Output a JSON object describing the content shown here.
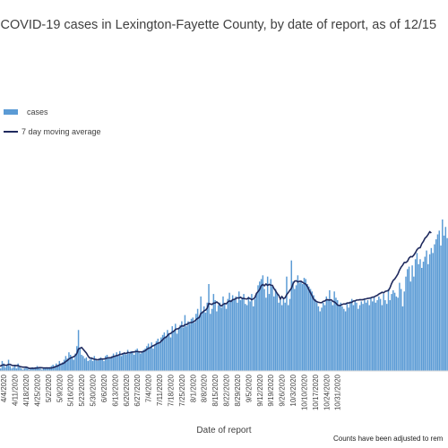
{
  "chart_data": {
    "type": "bar",
    "title": "w COVID-19 cases in Lexington-Fayette County, by date of report, as of 12/15",
    "xlabel": "Date of report",
    "ylabel": "",
    "series": [
      {
        "name": "cases",
        "type": "bar",
        "color": "#5b9bd5"
      },
      {
        "name": "7 day moving average",
        "type": "line",
        "color": "#1f2a5e"
      }
    ],
    "x_tick_labels": [
      "4/4/2020",
      "4/11/2020",
      "4/18/2020",
      "4/25/2020",
      "5/2/2020",
      "5/9/2020",
      "5/16/2020",
      "5/23/2020",
      "5/30/2020",
      "6/6/2020",
      "6/13/2020",
      "6/20/2020",
      "6/27/2020",
      "7/4/2020",
      "7/11/2020",
      "7/18/2020",
      "7/25/2020",
      "8/1/2020",
      "8/8/2020",
      "8/15/2020",
      "8/22/2020",
      "8/29/2020",
      "9/5/2020",
      "9/12/2020",
      "9/19/2020",
      "9/26/2020",
      "10/3/2020",
      "10/10/2020",
      "10/17/2020",
      "10/24/2020",
      "10/31/2020"
    ],
    "values": [
      4,
      2,
      8,
      6,
      3,
      5,
      9,
      4,
      2,
      3,
      5,
      2,
      6,
      3,
      2,
      1,
      2,
      3,
      2,
      1,
      2,
      3,
      2,
      3,
      4,
      3,
      2,
      1,
      2,
      2,
      3,
      2,
      3,
      4,
      5,
      4,
      6,
      5,
      8,
      6,
      7,
      9,
      12,
      10,
      15,
      13,
      11,
      9,
      14,
      20,
      33,
      18,
      13,
      12,
      10,
      11,
      8,
      9,
      10,
      8,
      12,
      9,
      8,
      10,
      11,
      9,
      8,
      12,
      13,
      10,
      11,
      12,
      14,
      12,
      15,
      13,
      16,
      12,
      14,
      15,
      13,
      17,
      14,
      16,
      15,
      13,
      17,
      18,
      15,
      14,
      16,
      17,
      18,
      20,
      22,
      19,
      23,
      18,
      21,
      24,
      26,
      22,
      27,
      29,
      31,
      28,
      33,
      30,
      27,
      36,
      32,
      38,
      30,
      34,
      37,
      40,
      35,
      45,
      36,
      40,
      38,
      42,
      43,
      39,
      46,
      50,
      44,
      60,
      48,
      52,
      47,
      55,
      70,
      46,
      50,
      62,
      57,
      48,
      53,
      55,
      51,
      60,
      54,
      50,
      58,
      63,
      57,
      61,
      57,
      60,
      55,
      64,
      57,
      59,
      62,
      54,
      53,
      60,
      56,
      62,
      52,
      58,
      63,
      69,
      72,
      74,
      77,
      66,
      59,
      76,
      62,
      74,
      68,
      60,
      66,
      63,
      55,
      58,
      53,
      58,
      55,
      76,
      53,
      58,
      89,
      72,
      66,
      69,
      77,
      71,
      72,
      70,
      75,
      74,
      70,
      68,
      66,
      64,
      61,
      58,
      55,
      52,
      48,
      51,
      55,
      53,
      60,
      57,
      65,
      56,
      53,
      64,
      59,
      57,
      53,
      55,
      52,
      50,
      48,
      54,
      51,
      56,
      58,
      53,
      57,
      55,
      50,
      53,
      56,
      54,
      58,
      55,
      57,
      53,
      59,
      56,
      60,
      55,
      57,
      60,
      58,
      53,
      62,
      57,
      54,
      66,
      57,
      62,
      65,
      63,
      60,
      59,
      71,
      66,
      52,
      64,
      76,
      82,
      84,
      72,
      85,
      76,
      90,
      95,
      86,
      90,
      83,
      88,
      92,
      97,
      86,
      94,
      99,
      95,
      102,
      106,
      110,
      113,
      101,
      122,
      109,
      116,
      107
    ],
    "moving_average": [
      4,
      4,
      4.7,
      5,
      4.6,
      4.7,
      5.3,
      5.3,
      4.6,
      4.3,
      4.4,
      4.3,
      4.4,
      3.6,
      3.3,
      3.1,
      3,
      3.1,
      2.7,
      2,
      2.1,
      2.1,
      2.1,
      2.3,
      2.4,
      2.6,
      2.7,
      2.6,
      2.4,
      2.4,
      2.4,
      2.4,
      2.4,
      2.4,
      2.7,
      3.1,
      3.7,
      4,
      4.9,
      5.4,
      5.9,
      6.4,
      7.6,
      8.4,
      9.6,
      10.4,
      11,
      11.4,
      12.4,
      14.1,
      17.7,
      18.3,
      18.9,
      17.4,
      15.9,
      14.4,
      12.1,
      10.4,
      10.4,
      9.9,
      9.4,
      9.3,
      8.9,
      9.3,
      9.6,
      9.6,
      9.6,
      9.9,
      10.4,
      10.6,
      10.6,
      10.9,
      11.6,
      11.9,
      12.4,
      12.6,
      13.4,
      13.4,
      14,
      14.4,
      14,
      14.9,
      14.7,
      14.7,
      15.3,
      15.3,
      15.6,
      15.7,
      15.4,
      15.4,
      15.3,
      15.7,
      16.3,
      17.3,
      18.3,
      18.6,
      19.6,
      20.3,
      20.9,
      21.7,
      22.4,
      22.6,
      23.9,
      25.1,
      26.6,
      27.1,
      28.4,
      29.9,
      30.1,
      31.4,
      32,
      33.4,
      33.9,
      34.1,
      35.3,
      36.4,
      36.1,
      37.3,
      37.3,
      38.3,
      38.9,
      39,
      39.4,
      40.1,
      41.3,
      42.4,
      43.1,
      46.4,
      47,
      48.4,
      49,
      50.6,
      54.4,
      53.9,
      53.6,
      54.6,
      54.7,
      55.6,
      54.6,
      53,
      52.3,
      53.6,
      54.3,
      54.1,
      55.6,
      56.4,
      56,
      57.4,
      57.6,
      58.3,
      58.9,
      58.7,
      59.4,
      58.4,
      58.4,
      58.1,
      58,
      58.7,
      58.3,
      57.4,
      58,
      59.1,
      62.4,
      63.9,
      65.6,
      68.6,
      69.6,
      68.6,
      70,
      68.9,
      69.7,
      69.1,
      68.9,
      66.4,
      64.6,
      62.4,
      60.9,
      58,
      59.9,
      58.3,
      58.9,
      61.4,
      63.1,
      64.9,
      66.7,
      70.3,
      72.3,
      72.6,
      71.7,
      72.1,
      72.3,
      71.4,
      70.6,
      69.9,
      68.1,
      65.4,
      62.9,
      60.4,
      57.7,
      56.6,
      55.7,
      55.3,
      55.1,
      55,
      56,
      56.4,
      57.4,
      57.3,
      57.1,
      57.3,
      56.1,
      55.6,
      54.6,
      53.1,
      52.7,
      52.9,
      53.6,
      54,
      53.9,
      54.7,
      54.7,
      55.1,
      55.3,
      56.3,
      56.4,
      57.1,
      57.1,
      57.4,
      57.3,
      57.4,
      57.9,
      58.1,
      58.4,
      58.6,
      58.9,
      59.4,
      59.6,
      60.4,
      60.9,
      61.9,
      62.6,
      63.4,
      62.9,
      64.1,
      64.4,
      64.7,
      67,
      70.4,
      72.9,
      74.1,
      76,
      78.1,
      81.3,
      83.6,
      85.3,
      87.4,
      87.4,
      88.3,
      90.9,
      92.1,
      91.9,
      93.3,
      95.3,
      97.7,
      99,
      99.3,
      102.4,
      104.3,
      106.9,
      108.1,
      109.9,
      112.1,
      111.1
    ],
    "legend_position": "top-left",
    "grid": false
  },
  "labels": {
    "title": "w COVID-19 cases in Lexington-Fayette County, by date of report, as of 12/15",
    "legend_cases": "cases",
    "legend_ma": "7 day moving average",
    "xlabel": "Date of report",
    "footnote": "Counts have been adjusted to rem"
  }
}
